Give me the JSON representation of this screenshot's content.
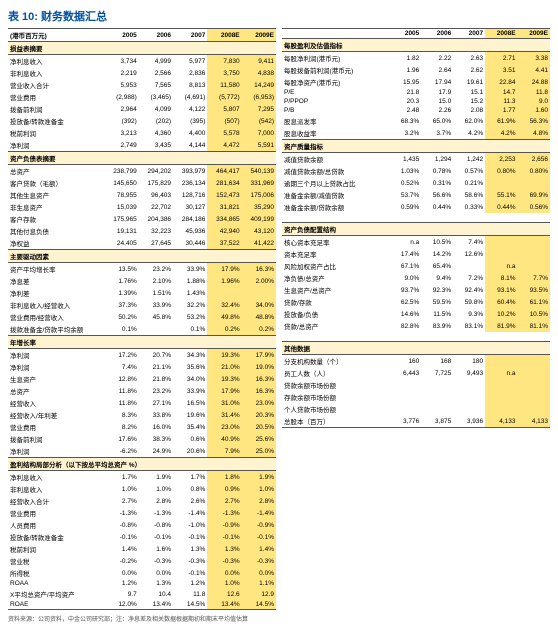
{
  "title": "表 10: 财务数据汇总",
  "header_unit": "(港币百万元)",
  "years": [
    "2005",
    "2006",
    "2007",
    "2008E",
    "2009E"
  ],
  "left": [
    {
      "sec": "损益表摘要"
    },
    {
      "r": [
        "净利息收入",
        "3,734",
        "4,999",
        "5,977",
        "7,830",
        "9,411"
      ]
    },
    {
      "r": [
        "非利息收入",
        "2,219",
        "2,566",
        "2,836",
        "3,750",
        "4,838"
      ]
    },
    {
      "r": [
        "营业收入合计",
        "5,953",
        "7,565",
        "8,813",
        "11,580",
        "14,249"
      ]
    },
    {
      "r": [
        "营业费用",
        "(2,988)",
        "(3,465)",
        "(4,691)",
        "(5,772)",
        "(6,953)"
      ]
    },
    {
      "r": [
        "拨备前利润",
        "2,964",
        "4,099",
        "4,122",
        "5,807",
        "7,295"
      ]
    },
    {
      "r": [
        "投放备/转款准备金",
        "(392)",
        "(202)",
        "(395)",
        "(507)",
        "(542)"
      ]
    },
    {
      "r": [
        "税前利润",
        "3,213",
        "4,360",
        "4,400",
        "5,578",
        "7,000"
      ]
    },
    {
      "r": [
        "净利润",
        "2,749",
        "3,435",
        "4,144",
        "4,472",
        "5,591"
      ]
    },
    {
      "sec": "资产负债表摘要"
    },
    {
      "r": [
        "总资产",
        "238,799",
        "294,202",
        "393,979",
        "464,417",
        "540,139"
      ]
    },
    {
      "r": [
        "客户贷款（毛额）",
        "145,650",
        "175,829",
        "236,134",
        "281,634",
        "331,969"
      ]
    },
    {
      "r": [
        "其他生息资产",
        "78,955",
        "96,403",
        "128,716",
        "152,473",
        "175,006"
      ]
    },
    {
      "r": [
        "非生息资产",
        "15,039",
        "22,702",
        "30,127",
        "31,821",
        "35,290"
      ]
    },
    {
      "r": [
        "客户存款",
        "175,965",
        "204,386",
        "284,186",
        "334,865",
        "409,199"
      ]
    },
    {
      "r": [
        "其他付息负债",
        "19,131",
        "32,223",
        "45,936",
        "42,940",
        "43,120"
      ]
    },
    {
      "r": [
        "净权益",
        "24,405",
        "27,645",
        "30,446",
        "37,522",
        "41,422"
      ]
    },
    {
      "sec": "主要驱动因素"
    },
    {
      "r": [
        "资产平均增长率",
        "13.5%",
        "23.2%",
        "33.9%",
        "17.9%",
        "16.3%"
      ]
    },
    {
      "r": [
        "净息差",
        "1.76%",
        "2.10%",
        "1.88%",
        "1.96%",
        "2.00%"
      ]
    },
    {
      "r": [
        "净利差",
        "1.39%",
        "1.51%",
        "1.43%",
        "",
        ""
      ]
    },
    {
      "r": [
        "非利息收入/经营收入",
        "37.3%",
        "33.9%",
        "32.2%",
        "32.4%",
        "34.0%"
      ]
    },
    {
      "r": [
        "营业费用/经营收入",
        "50.2%",
        "45.8%",
        "53.2%",
        "49.8%",
        "48.8%"
      ]
    },
    {
      "r": [
        "拨款准备金/贷款平均余额",
        "0.1%",
        "",
        "0.1%",
        "0.2%",
        "0.2%"
      ]
    },
    {
      "sec": "年增长率"
    },
    {
      "r": [
        "净利润",
        "17.2%",
        "20.7%",
        "34.3%",
        "19.3%",
        "17.9%"
      ]
    },
    {
      "r": [
        "净利润",
        "7.4%",
        "21.1%",
        "35.6%",
        "21.0%",
        "19.0%"
      ]
    },
    {
      "r": [
        "生息资产",
        "12.8%",
        "21.8%",
        "34.0%",
        "19.3%",
        "16.3%"
      ]
    },
    {
      "r": [
        "总资产",
        "11.8%",
        "23.2%",
        "33.9%",
        "17.9%",
        "16.3%"
      ]
    },
    {
      "r": [
        "经营收入",
        "11.8%",
        "27.1%",
        "16.5%",
        "31.0%",
        "23.0%"
      ]
    },
    {
      "r": [
        "经营收入/年利差",
        "8.3%",
        "33.8%",
        "19.6%",
        "31.4%",
        "20.3%"
      ]
    },
    {
      "r": [
        "营业费用",
        "8.2%",
        "16.0%",
        "35.4%",
        "23.0%",
        "20.5%"
      ]
    },
    {
      "r": [
        "拨备前利润",
        "17.6%",
        "38.3%",
        "0.6%",
        "40.9%",
        "25.6%"
      ]
    },
    {
      "r": [
        "净利润",
        "-6.2%",
        "24.9%",
        "20.6%",
        "7.9%",
        "25.0%"
      ]
    },
    {
      "sec": "盈利结构局部分析（以下按总平均总资产 %）"
    },
    {
      "r": [
        "净利息收入",
        "1.7%",
        "1.9%",
        "1.7%",
        "1.8%",
        "1.9%"
      ]
    },
    {
      "r": [
        "非利息收入",
        "1.0%",
        "1.0%",
        "0.8%",
        "0.9%",
        "1.0%"
      ]
    },
    {
      "r": [
        "经营收入合计",
        "2.7%",
        "2.8%",
        "2.6%",
        "2.7%",
        "2.8%"
      ]
    },
    {
      "r": [
        "营业费用",
        "-1.3%",
        "-1.3%",
        "-1.4%",
        "-1.3%",
        "-1.4%"
      ]
    },
    {
      "r": [
        "人员费用",
        "-0.8%",
        "-0.8%",
        "-1.0%",
        "-0.9%",
        "-0.9%"
      ]
    },
    {
      "r": [
        "投放备/转款准备金",
        "-0.1%",
        "-0.1%",
        "-0.1%",
        "-0.1%",
        "-0.1%"
      ]
    },
    {
      "r": [
        "税前利润",
        "1.4%",
        "1.6%",
        "1.3%",
        "1.3%",
        "1.4%"
      ]
    },
    {
      "r": [
        "营业税",
        "-0.2%",
        "-0.3%",
        "-0.3%",
        "-0.3%",
        "-0.3%"
      ]
    },
    {
      "r": [
        "所得税",
        "0.0%",
        "0.0%",
        "-0.1%",
        "0.0%",
        "0.0%"
      ]
    },
    {
      "r": [
        "ROAA",
        "1.2%",
        "1.3%",
        "1.2%",
        "1.0%",
        "1.1%"
      ]
    },
    {
      "r": [
        "X平均总资产/平均资产",
        "9.7",
        "10.4",
        "11.8",
        "12.6",
        "12.9"
      ]
    },
    {
      "r": [
        "ROAE",
        "12.0%",
        "13.4%",
        "14.5%",
        "13.4%",
        "14.5%"
      ]
    }
  ],
  "right": [
    {
      "sec": "每股盈利及估值指标"
    },
    {
      "r": [
        "每股净利润(港币元)",
        "1.82",
        "2.22",
        "2.63",
        "2.71",
        "3.38"
      ]
    },
    {
      "r": [
        "每股拨备前利润(港币元)",
        "1.96",
        "2.64",
        "2.62",
        "3.51",
        "4.41"
      ]
    },
    {
      "r": [
        "每股净资产(港币元)",
        "15.95",
        "17.94",
        "19.61",
        "22.84",
        "24.88"
      ]
    },
    {
      "r": [
        "P/E",
        "21.8",
        "17.9",
        "15.1",
        "14.7",
        "11.8"
      ]
    },
    {
      "r": [
        "P/PPOP",
        "20.3",
        "15.0",
        "15.2",
        "11.3",
        "9.0"
      ]
    },
    {
      "r": [
        "P/B",
        "2.48",
        "2.26",
        "2.08",
        "1.77",
        "1.60"
      ]
    },
    {
      "r": [
        "股息派发率",
        "68.3%",
        "65.0%",
        "62.0%",
        "61.9%",
        "56.3%"
      ]
    },
    {
      "r": [
        "股息收益率",
        "3.2%",
        "3.7%",
        "4.2%",
        "4.2%",
        "4.8%"
      ]
    },
    {
      "sec": "资产质量指标"
    },
    {
      "r": [
        "减值贷款余额",
        "1,435",
        "1,294",
        "1,242",
        "2,253",
        "2,656"
      ]
    },
    {
      "r": [
        "减值贷款余额/总贷款",
        "1.03%",
        "0.78%",
        "0.57%",
        "0.80%",
        "0.80%"
      ]
    },
    {
      "r": [
        "逾期三个月以上贷款占比",
        "0.52%",
        "0.31%",
        "0.21%",
        "",
        ""
      ]
    },
    {
      "r": [
        "准备金余额/减值贷款",
        "53.7%",
        "56.6%",
        "58.6%",
        "55.1%",
        "69.9%"
      ]
    },
    {
      "r": [
        "准备金余额/贷款余额",
        "0.59%",
        "0.44%",
        "0.33%",
        "0.44%",
        "0.56%"
      ]
    },
    {
      "spacer": true
    },
    {
      "sec": "资产负债配置结构"
    },
    {
      "r": [
        "核心资本充足率",
        "n.a",
        "10.5%",
        "7.4%",
        "",
        ""
      ]
    },
    {
      "r": [
        "资本充足率",
        "17.4%",
        "14.2%",
        "12.6%",
        "",
        ""
      ]
    },
    {
      "r": [
        "风险加权资产占比",
        "67.1%",
        "65.4%",
        "",
        "n.a",
        ""
      ]
    },
    {
      "r": [
        "净负债/总资产",
        "9.0%",
        "9.4%",
        "7.2%",
        "8.1%",
        "7.7%"
      ]
    },
    {
      "r": [
        "生息资产/总资产",
        "93.7%",
        "92.3%",
        "92.4%",
        "93.1%",
        "93.5%"
      ]
    },
    {
      "r": [
        "贷款/存款",
        "62.5%",
        "59.5%",
        "59.8%",
        "60.4%",
        "61.1%"
      ]
    },
    {
      "r": [
        "投放备/负债",
        "14.6%",
        "11.5%",
        "9.3%",
        "10.2%",
        "10.5%"
      ]
    },
    {
      "r": [
        "贷款/总资产",
        "82.8%",
        "83.9%",
        "83.1%",
        "81.9%",
        "81.1%"
      ]
    },
    {
      "spacer": true
    },
    {
      "sec": "其他数据"
    },
    {
      "r": [
        "分支机构数量（个）",
        "160",
        "168",
        "180",
        "",
        ""
      ]
    },
    {
      "r": [
        "员工人数（人）",
        "6,443",
        "7,725",
        "9,493",
        "n.a",
        ""
      ]
    },
    {
      "r": [
        "贷款余额市场份额",
        "",
        "",
        "",
        "",
        ""
      ]
    },
    {
      "r": [
        "存款余额市场份额",
        "",
        "",
        "",
        "",
        ""
      ]
    },
    {
      "r": [
        "个人贷款市场份额",
        "",
        "",
        "",
        "",
        ""
      ]
    },
    {
      "r": [
        "总股本（百万）",
        "3,776",
        "3,875",
        "3,936",
        "4,133",
        "4,133"
      ]
    }
  ],
  "footnote": "资料来源：公司资料，中金公司研究部；注：净息差及相关数据根据期初和期末平均值估算"
}
